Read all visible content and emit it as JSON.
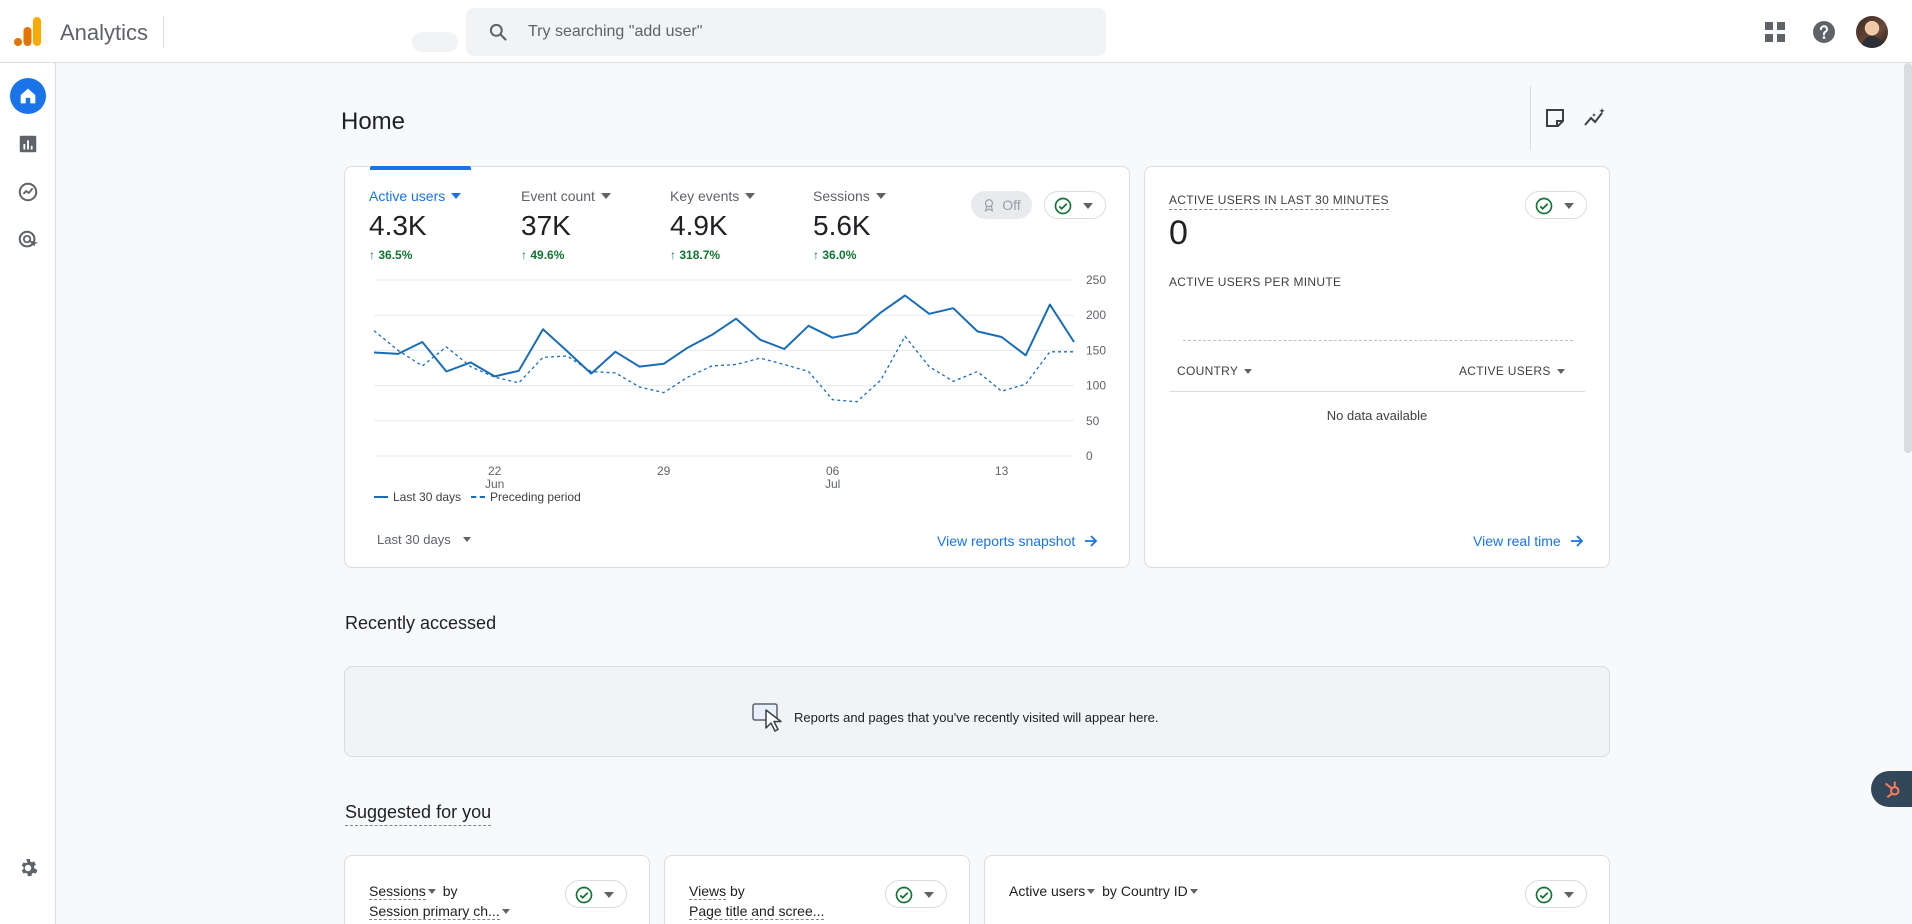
{
  "app": {
    "title": "Analytics"
  },
  "search": {
    "placeholder": "Try searching \"add user\"",
    "value": ""
  },
  "icons": {
    "logo": "analytics-logo",
    "apps": "apps-grid-icon",
    "help": "help-icon",
    "home": "home-icon",
    "reports": "reports-icon",
    "explore": "explore-icon",
    "advertising": "advertising-icon",
    "settings": "gear-icon"
  },
  "colors": {
    "accent": "#1a73e8",
    "positive": "#137333",
    "series": "#1a6db5"
  },
  "page": {
    "title": "Home"
  },
  "overview": {
    "metrics": [
      {
        "label": "Active users",
        "value": "4.3K",
        "change": "36.5%",
        "active": true
      },
      {
        "label": "Event count",
        "value": "37K",
        "change": "49.6%",
        "active": false
      },
      {
        "label": "Key events",
        "value": "4.9K",
        "change": "318.7%",
        "active": false
      },
      {
        "label": "Sessions",
        "value": "5.6K",
        "change": "36.0%",
        "active": false
      }
    ],
    "comparison_toggle": "Off",
    "date_range": "Last 30 days",
    "link": "View reports snapshot"
  },
  "chart_data": {
    "type": "line",
    "ylim": [
      0,
      250
    ],
    "yticks": [
      0,
      50,
      100,
      150,
      200,
      250
    ],
    "x": [
      "Jun 17",
      "Jun 18",
      "Jun 19",
      "Jun 20",
      "Jun 21",
      "Jun 22",
      "Jun 23",
      "Jun 24",
      "Jun 25",
      "Jun 26",
      "Jun 27",
      "Jun 28",
      "Jun 29",
      "Jun 30",
      "Jul 1",
      "Jul 2",
      "Jul 3",
      "Jul 4",
      "Jul 5",
      "Jul 6",
      "Jul 7",
      "Jul 8",
      "Jul 9",
      "Jul 10",
      "Jul 11",
      "Jul 12",
      "Jul 13",
      "Jul 14",
      "Jul 15",
      "Jul 16"
    ],
    "xtick_labels": [
      {
        "x": "Jun 22",
        "day": "22",
        "month": "Jun"
      },
      {
        "x": "Jun 29",
        "day": "29",
        "month": ""
      },
      {
        "x": "Jul 6",
        "day": "06",
        "month": "Jul"
      },
      {
        "x": "Jul 13",
        "day": "13",
        "month": ""
      }
    ],
    "series": [
      {
        "name": "Last 30 days",
        "style": "solid",
        "values": [
          147,
          145,
          162,
          120,
          133,
          113,
          121,
          180,
          149,
          117,
          148,
          127,
          131,
          154,
          172,
          195,
          165,
          152,
          185,
          168,
          175,
          204,
          228,
          202,
          210,
          177,
          169,
          143,
          215,
          162
        ]
      },
      {
        "name": "Preceding period",
        "style": "dashed",
        "values": [
          178,
          150,
          128,
          155,
          127,
          112,
          104,
          140,
          142,
          120,
          118,
          98,
          90,
          112,
          128,
          130,
          139,
          130,
          120,
          80,
          77,
          108,
          170,
          127,
          106,
          120,
          92,
          102,
          148,
          148
        ]
      }
    ]
  },
  "realtime": {
    "title": "ACTIVE USERS IN LAST 30 MINUTES",
    "value": "0",
    "per_minute_label": "ACTIVE USERS PER MINUTE",
    "col_country": "COUNTRY",
    "col_active_users": "ACTIVE USERS",
    "empty": "No data available",
    "link": "View real time"
  },
  "recent": {
    "title": "Recently accessed",
    "empty": "Reports and pages that you've recently visited will appear here."
  },
  "suggested": {
    "title": "Suggested for you",
    "cards": [
      {
        "line1_metric": "Sessions",
        "line1_rest": "by",
        "line2": "Session primary ch..."
      },
      {
        "line1_metric": "Views",
        "line1_rest": "by",
        "line2": "Page title and scree..."
      },
      {
        "line1_metric": "Active users",
        "line1_rest": "by",
        "line2": "Country ID"
      }
    ]
  }
}
